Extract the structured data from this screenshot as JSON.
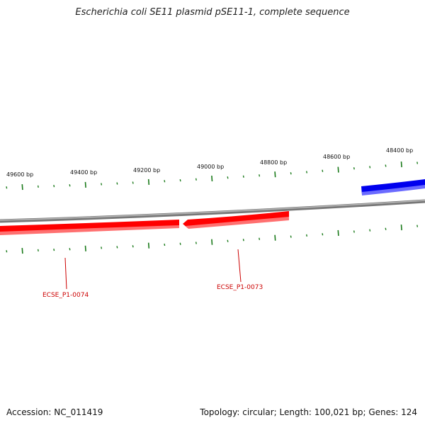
{
  "title": "Escherichia coli SE11 plasmid pSE11-1, complete sequence",
  "footer": {
    "accession": "Accession: NC_011419",
    "summary": "Topology: circular; Length: 100,021 bp; Genes: 124"
  },
  "scale_labels": [
    "49600 bp",
    "49400 bp",
    "49200 bp",
    "49000 bp",
    "48800 bp",
    "48600 bp",
    "48400 bp"
  ],
  "genes": [
    {
      "label": "ECSE_P1-0074",
      "color": "#ff0000"
    },
    {
      "label": "ECSE_P1-0073",
      "color": "#ff0000"
    },
    {
      "label": "",
      "color": "#0000ff"
    }
  ],
  "colors": {
    "backbone": "#888888",
    "ticks": "#1a7a1a",
    "forward_gene": "#0000ff",
    "reverse_gene": "#ff0000",
    "gene_label": "#cc0000"
  }
}
